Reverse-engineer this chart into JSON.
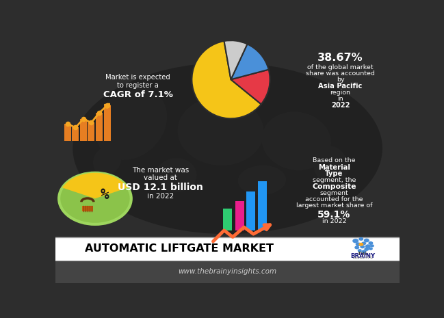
{
  "bg_color": "#2d2d2d",
  "footer_bg": "#ffffff",
  "bottom_bg": "#3a3a3a",
  "title_text": "AUTOMATIC LIFTGATE MARKET",
  "website": "www.thebrainyinsights.com",
  "cagr_line1": "Market is expected",
  "cagr_line2": "to register a",
  "cagr_bold": "CAGR of 7.1%",
  "pie_pct": "38.67%",
  "pie_line1": "of the global market",
  "pie_line2": "share was accounted",
  "pie_bold3": "Asia Pacific",
  "pie_line5": "in ",
  "pie_bold5": "2022",
  "market_val_line1": "The market was",
  "market_val_line2": "valued at",
  "market_val_bold": "USD 12.1 billion",
  "market_val_line3": "in 2022",
  "bar_bold1": "Material",
  "bar_bold2": "Composite",
  "bar_pct": "59.1%",
  "pie_colors": [
    "#f5c518",
    "#e63946",
    "#4a90d9",
    "#cccccc"
  ],
  "pie_sizes": [
    61.33,
    15,
    14,
    9.67
  ],
  "bar_colors_r": [
    "#2ecc71",
    "#e91e8c",
    "#2196f3",
    "#2196f3"
  ],
  "bar_heights_r": [
    0.09,
    0.12,
    0.16,
    0.2
  ],
  "bar_positions_r": [
    0.5,
    0.535,
    0.568,
    0.601
  ],
  "arrow_color": "#ff6b35",
  "orange_bar_color": "#e67e22",
  "line_color": "#f5a623",
  "green_circle_color": "#8bc34a",
  "yellow_wedge_color": "#f5c518",
  "logo_dot_color": "#4a90d9",
  "logo_orange_dot": "#f5a623"
}
